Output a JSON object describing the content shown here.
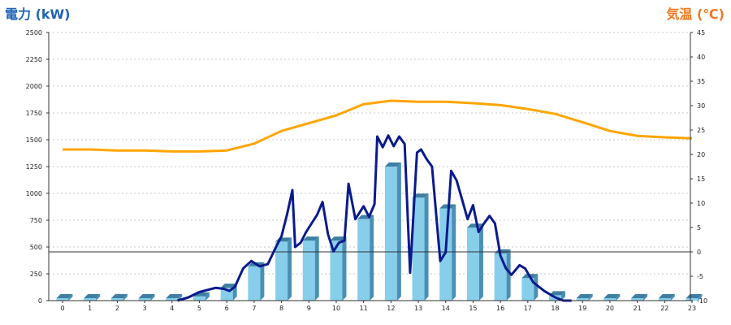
{
  "chart_data": {
    "type": "bar",
    "left_axis_title": "電力 (kW)",
    "right_axis_title": "気温 (℃)",
    "categories": [
      "0",
      "1",
      "2",
      "3",
      "4",
      "5",
      "6",
      "7",
      "8",
      "9",
      "10",
      "11",
      "12",
      "13",
      "14",
      "15",
      "16",
      "17",
      "18",
      "19",
      "20",
      "21",
      "22",
      "23"
    ],
    "ylim_left": [
      0,
      2500
    ],
    "yticks_left": [
      0,
      250,
      500,
      750,
      1000,
      1250,
      1500,
      1750,
      2000,
      2250,
      2500
    ],
    "ylim_right": [
      -10,
      45
    ],
    "yticks_right": [
      -10,
      -5,
      0,
      5,
      10,
      15,
      20,
      25,
      30,
      35,
      40,
      45
    ],
    "grid": true,
    "series": [
      {
        "kind": "bar",
        "axis": "left",
        "color": "#87ceeb",
        "values": [
          0,
          0,
          0,
          0,
          0,
          40,
          120,
          320,
          550,
          560,
          560,
          760,
          1250,
          960,
          860,
          680,
          440,
          210,
          50,
          0,
          0,
          0,
          0,
          0
        ]
      },
      {
        "kind": "line",
        "axis": "left",
        "color": "#0a1a8c",
        "x": [
          4.2,
          4.6,
          5.0,
          5.3,
          5.6,
          5.9,
          6.1,
          6.3,
          6.6,
          6.9,
          7.2,
          7.5,
          7.8,
          8.0,
          8.2,
          8.4,
          8.5,
          8.7,
          8.9,
          9.1,
          9.3,
          9.5,
          9.7,
          9.9,
          10.1,
          10.3,
          10.45,
          10.7,
          11.0,
          11.2,
          11.4,
          11.5,
          11.7,
          11.9,
          12.1,
          12.3,
          12.5,
          12.7,
          12.95,
          13.1,
          13.3,
          13.5,
          13.8,
          14.0,
          14.2,
          14.4,
          14.6,
          14.8,
          15.0,
          15.2,
          15.4,
          15.6,
          15.8,
          16.0,
          16.2,
          16.4,
          16.7,
          16.9,
          17.2,
          17.6,
          18.0,
          18.3,
          18.6
        ],
        "y": [
          0,
          30,
          80,
          100,
          120,
          110,
          90,
          130,
          300,
          370,
          320,
          340,
          500,
          600,
          800,
          1030,
          500,
          540,
          640,
          720,
          800,
          920,
          620,
          460,
          540,
          560,
          1090,
          760,
          880,
          780,
          900,
          1530,
          1430,
          1540,
          1440,
          1530,
          1460,
          260,
          1380,
          1410,
          1320,
          1250,
          370,
          450,
          1210,
          1120,
          940,
          760,
          890,
          640,
          720,
          790,
          720,
          420,
          300,
          240,
          330,
          300,
          170,
          90,
          30,
          0,
          0
        ]
      },
      {
        "kind": "line",
        "axis": "right",
        "color": "#ffa500",
        "x": [
          0,
          1,
          2,
          3,
          4,
          5,
          6,
          7,
          8,
          9,
          10,
          11,
          12,
          13,
          14,
          15,
          16,
          17,
          18,
          19,
          20,
          21,
          22,
          23
        ],
        "y": [
          21,
          21,
          20.8,
          20.8,
          20.6,
          20.6,
          20.8,
          22.2,
          24.8,
          26.4,
          28,
          30.3,
          31,
          30.8,
          30.8,
          30.5,
          30.1,
          29.3,
          28.3,
          26.6,
          24.8,
          23.8,
          23.5,
          23.3
        ]
      }
    ]
  }
}
